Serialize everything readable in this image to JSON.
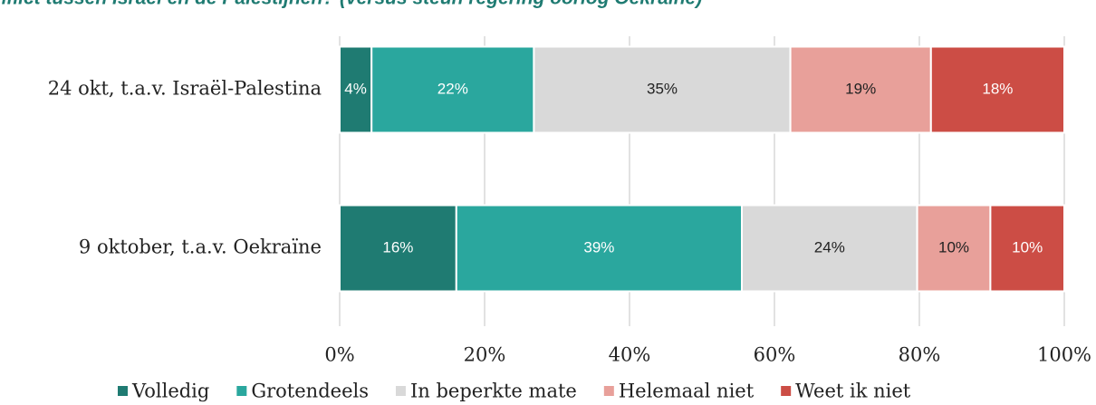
{
  "chart_data": {
    "type": "stacked_barh",
    "title": "conflict tussen Israël en de Palestijnen? (versus steun regering oorlog Oekraïne)",
    "categories": [
      "24 okt, t.a.v. Israël-Palestina",
      "9 oktober, t.a.v. Oekraïne"
    ],
    "series": [
      {
        "name": "Volledig",
        "color": "#1f7b72",
        "values": [
          4.4,
          16.1
        ],
        "value_labels": [
          "4%",
          "16%"
        ]
      },
      {
        "name": "Grotendeels",
        "color": "#2aa79e",
        "values": [
          22.4,
          39.4
        ],
        "value_labels": [
          "22%",
          "39%"
        ]
      },
      {
        "name": "In beperkte mate",
        "color": "#d9d9d9",
        "values": [
          35.4,
          24.2
        ],
        "value_labels": [
          "35%",
          "24%"
        ]
      },
      {
        "name": "Helemaal niet",
        "color": "#e8a09a",
        "values": [
          19.4,
          10.1
        ],
        "value_labels": [
          "19%",
          "10%"
        ]
      },
      {
        "name": "Weet ik niet",
        "color": "#cc4d45",
        "values": [
          18.4,
          10.2
        ],
        "value_labels": [
          "18%",
          "10%"
        ]
      }
    ],
    "xlim": [
      0,
      100
    ],
    "xticks": [
      {
        "value": 0,
        "label": "0%"
      },
      {
        "value": 20,
        "label": "20%"
      },
      {
        "value": 40,
        "label": "40%"
      },
      {
        "value": 60,
        "label": "60%"
      },
      {
        "value": 80,
        "label": "80%"
      },
      {
        "value": 100,
        "label": "100%"
      }
    ],
    "grid": true,
    "legend": "bottom"
  }
}
